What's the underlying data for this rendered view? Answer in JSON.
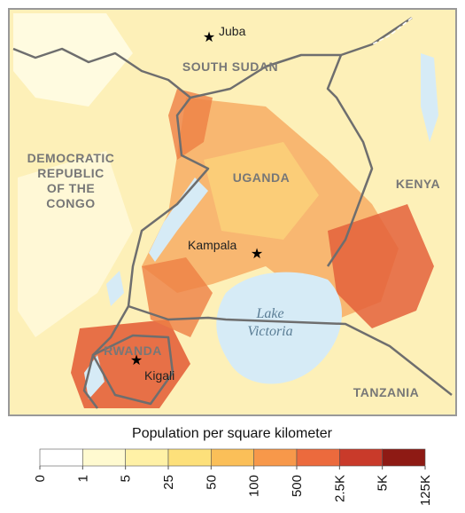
{
  "map": {
    "labels": {
      "juba": "Juba",
      "south_sudan": "SOUTH SUDAN",
      "drc": [
        "DEMOCRATIC",
        "REPUBLIC",
        "OF THE",
        "CONGO"
      ],
      "uganda": "UGANDA",
      "kenya": "KENYA",
      "kampala": "Kampala",
      "lake_victoria": [
        "Lake",
        "Victoria"
      ],
      "rwanda": "RWANDA",
      "kigali": "Kigali",
      "tanzania": "TANZANIA"
    },
    "legend": {
      "title": "Population per square kilometer",
      "colors": [
        "#ffffff",
        "#fffad0",
        "#fff1a6",
        "#fde07a",
        "#fbbf58",
        "#f7984a",
        "#ec6a3d",
        "#c93a2a",
        "#8e1a14"
      ],
      "ticks": [
        0,
        1,
        5,
        25,
        50,
        100,
        500,
        {
          "value": 2500,
          "label": "2.5K"
        },
        {
          "value": 5000,
          "label": "5K"
        },
        {
          "value": 125000,
          "label": "125K"
        }
      ]
    }
  }
}
